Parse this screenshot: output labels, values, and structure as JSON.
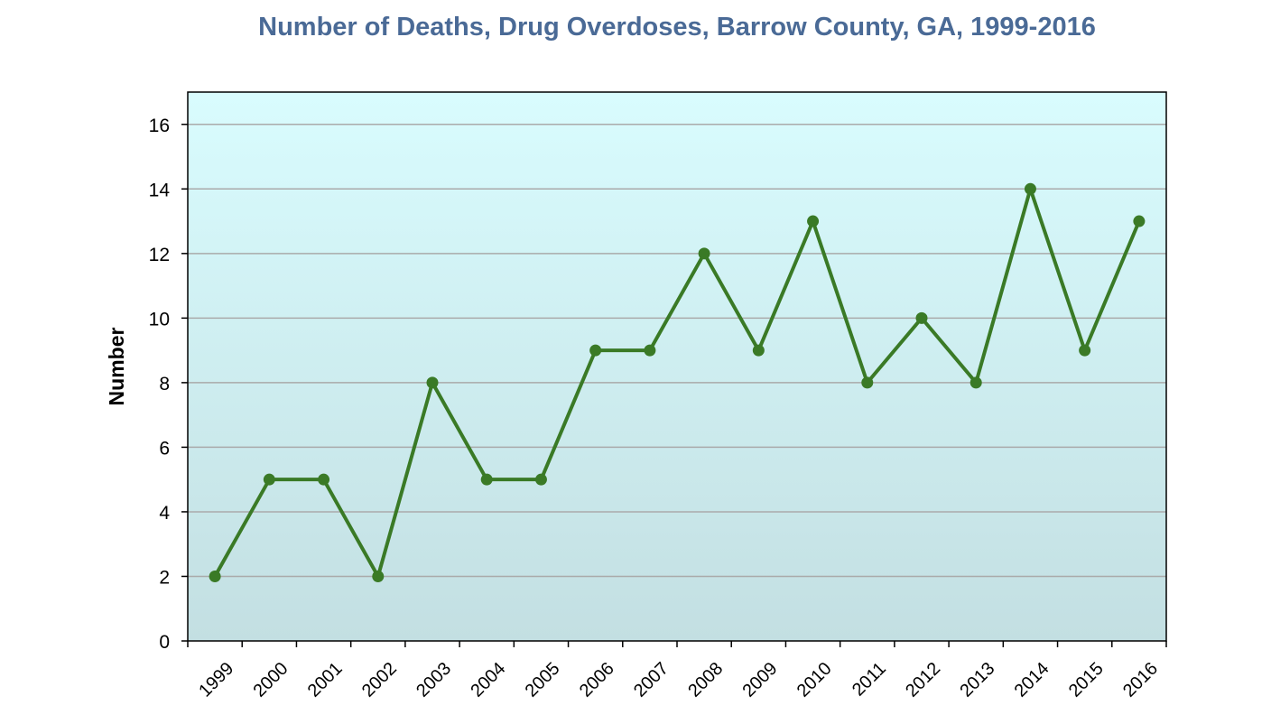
{
  "chart_data": {
    "type": "line",
    "title": "Number of Deaths, Drug Overdoses, Barrow County, GA, 1999-2016",
    "xlabel": "",
    "ylabel": "Number",
    "categories": [
      "1999",
      "2000",
      "2001",
      "2002",
      "2003",
      "2004",
      "2005",
      "2006",
      "2007",
      "2008",
      "2009",
      "2010",
      "2011",
      "2012",
      "2013",
      "2014",
      "2015",
      "2016"
    ],
    "series": [
      {
        "values": [
          2,
          5,
          5,
          2,
          8,
          5,
          5,
          9,
          9,
          12,
          9,
          13,
          8,
          10,
          8,
          14,
          9,
          13
        ]
      }
    ],
    "ylim": [
      0,
      17
    ],
    "yticks": [
      "0",
      "2",
      "4",
      "6",
      "8",
      "10",
      "12",
      "14",
      "16"
    ],
    "grid": "horizontal",
    "legend": "none",
    "colors": {
      "line": "#3a7a26",
      "marker": "#3a7a26",
      "title": "#4a6a96",
      "plot_bg_top": "#d9fcfe",
      "plot_bg_bottom": "#c3dfe2",
      "gridline": "#aaaaaa"
    }
  }
}
